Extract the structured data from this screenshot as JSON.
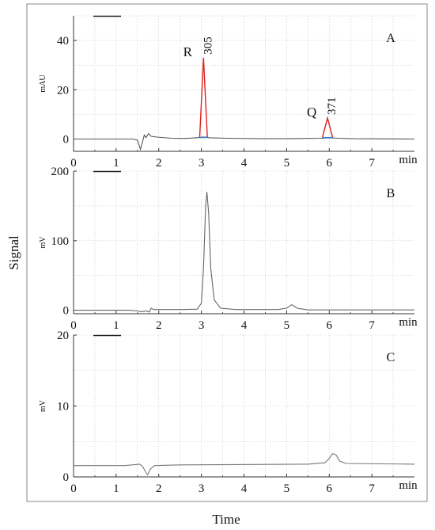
{
  "figure": {
    "ylabel": "Signal",
    "xlabel": "Time"
  },
  "chart_data": [
    {
      "type": "line",
      "panel_label": "A",
      "ylabel": "mAU",
      "x_unit_label": "min",
      "xlim": [
        0,
        8
      ],
      "ylim": [
        -5,
        50
      ],
      "xticks": [
        0,
        1,
        2,
        3,
        4,
        5,
        6,
        7
      ],
      "yticks": [
        0,
        20,
        40
      ],
      "grid": true,
      "baseline": 0,
      "series": [
        {
          "color": "#555555",
          "points": [
            [
              0,
              0
            ],
            [
              1.4,
              0
            ],
            [
              1.5,
              -0.5
            ],
            [
              1.57,
              -4.2
            ],
            [
              1.62,
              -1.0
            ],
            [
              1.66,
              1.6
            ],
            [
              1.7,
              0.6
            ],
            [
              1.76,
              2.2
            ],
            [
              1.82,
              1.1
            ],
            [
              1.95,
              0.8
            ],
            [
              2.3,
              0.3
            ],
            [
              2.6,
              0.2
            ],
            [
              2.8,
              0.4
            ],
            [
              2.95,
              0.6
            ],
            [
              3.0,
              0.8
            ],
            [
              3.1,
              0.8
            ],
            [
              3.2,
              0.5
            ],
            [
              3.6,
              0.3
            ],
            [
              4.4,
              0.1
            ],
            [
              5.0,
              0.1
            ],
            [
              5.8,
              0.3
            ],
            [
              6.0,
              0.5
            ],
            [
              6.2,
              0.3
            ],
            [
              6.6,
              0.1
            ],
            [
              8.0,
              0.0
            ]
          ]
        }
      ],
      "peaks": [
        {
          "label": "R",
          "rt_label": "305",
          "x": 3.05,
          "height": 33,
          "width": 0.09,
          "color": "#e02020"
        },
        {
          "label": "Q",
          "rt_label": "371",
          "x": 5.96,
          "height": 8.5,
          "width": 0.12,
          "color": "#e02020"
        }
      ],
      "peak_baseline_color": "#2a7fd4"
    },
    {
      "type": "line",
      "panel_label": "B",
      "ylabel": "mV",
      "x_unit_label": "min",
      "xlim": [
        0,
        8
      ],
      "ylim": [
        -5,
        200
      ],
      "xticks": [
        0,
        1,
        2,
        3,
        4,
        5,
        6,
        7
      ],
      "yticks": [
        0,
        100,
        200
      ],
      "grid": true,
      "series": [
        {
          "color": "#666666",
          "points": [
            [
              0,
              0
            ],
            [
              1.3,
              0
            ],
            [
              1.5,
              -1.0
            ],
            [
              1.6,
              -2.0
            ],
            [
              1.7,
              -1.0
            ],
            [
              1.78,
              -2.5
            ],
            [
              1.82,
              3.0
            ],
            [
              1.88,
              1.0
            ],
            [
              2.5,
              1.0
            ],
            [
              2.9,
              1.5
            ],
            [
              3.0,
              10
            ],
            [
              3.05,
              60
            ],
            [
              3.1,
              150
            ],
            [
              3.13,
              170
            ],
            [
              3.17,
              140
            ],
            [
              3.22,
              60
            ],
            [
              3.3,
              15
            ],
            [
              3.45,
              3
            ],
            [
              3.8,
              1
            ],
            [
              4.8,
              1
            ],
            [
              5.0,
              3
            ],
            [
              5.12,
              8
            ],
            [
              5.25,
              3
            ],
            [
              5.5,
              0.5
            ],
            [
              8.0,
              0.5
            ]
          ]
        }
      ]
    },
    {
      "type": "line",
      "panel_label": "C",
      "ylabel": "mV",
      "x_unit_label": "min",
      "xlim": [
        0,
        8
      ],
      "ylim": [
        0,
        20
      ],
      "xticks": [
        0,
        1,
        2,
        3,
        4,
        5,
        6,
        7
      ],
      "yticks": [
        0,
        10,
        20
      ],
      "grid": true,
      "series": [
        {
          "color": "#777777",
          "points": [
            [
              0,
              1.6
            ],
            [
              1.2,
              1.6
            ],
            [
              1.55,
              1.8
            ],
            [
              1.62,
              1.5
            ],
            [
              1.7,
              0.6
            ],
            [
              1.74,
              0.3
            ],
            [
              1.8,
              1.1
            ],
            [
              1.9,
              1.6
            ],
            [
              2.5,
              1.7
            ],
            [
              5.5,
              1.8
            ],
            [
              5.9,
              2.0
            ],
            [
              6.0,
              2.6
            ],
            [
              6.08,
              3.3
            ],
            [
              6.16,
              3.1
            ],
            [
              6.25,
              2.2
            ],
            [
              6.4,
              1.9
            ],
            [
              8.0,
              1.8
            ]
          ]
        }
      ]
    }
  ]
}
